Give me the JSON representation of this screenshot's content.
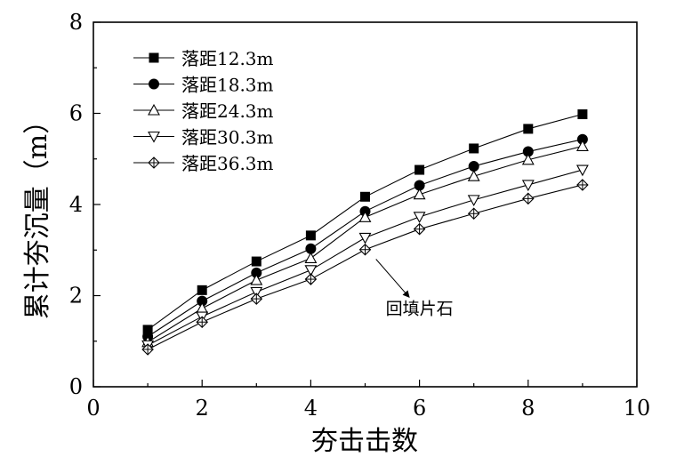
{
  "chart_data": {
    "type": "line",
    "xlabel": "夯击击数",
    "ylabel": "累计夯沉量（m）",
    "xlim": [
      0,
      10
    ],
    "ylim": [
      0,
      8
    ],
    "xticks": [
      0,
      2,
      4,
      6,
      8,
      10
    ],
    "yticks": [
      0,
      2,
      4,
      6,
      8
    ],
    "x": [
      1,
      2,
      3,
      4,
      5,
      6,
      7,
      8,
      9
    ],
    "legend_position": "top-left",
    "grid": false,
    "series": [
      {
        "name": "落距12.3m",
        "marker": "square-filled",
        "values": [
          1.25,
          2.12,
          2.75,
          3.32,
          4.17,
          4.76,
          5.23,
          5.66,
          5.98
        ]
      },
      {
        "name": "落距18.3m",
        "marker": "circle-filled",
        "values": [
          1.1,
          1.88,
          2.5,
          3.03,
          3.85,
          4.42,
          4.84,
          5.16,
          5.43
        ]
      },
      {
        "name": "落距24.3m",
        "marker": "triangle-up-open",
        "values": [
          0.98,
          1.72,
          2.34,
          2.82,
          3.72,
          4.22,
          4.62,
          4.98,
          5.28
        ]
      },
      {
        "name": "落距30.3m",
        "marker": "triangle-down-open",
        "values": [
          0.91,
          1.54,
          2.08,
          2.56,
          3.27,
          3.73,
          4.1,
          4.43,
          4.76
        ]
      },
      {
        "name": "落距36.3m",
        "marker": "diamond-cross",
        "values": [
          0.82,
          1.42,
          1.93,
          2.36,
          3.01,
          3.46,
          3.8,
          4.13,
          4.43
        ]
      }
    ],
    "annotations": [
      {
        "text": "回填片石",
        "arrow_from": [
          5.2,
          2.8
        ],
        "arrow_to": [
          5.8,
          1.98
        ],
        "text_at": [
          6.0,
          1.55
        ]
      }
    ]
  }
}
